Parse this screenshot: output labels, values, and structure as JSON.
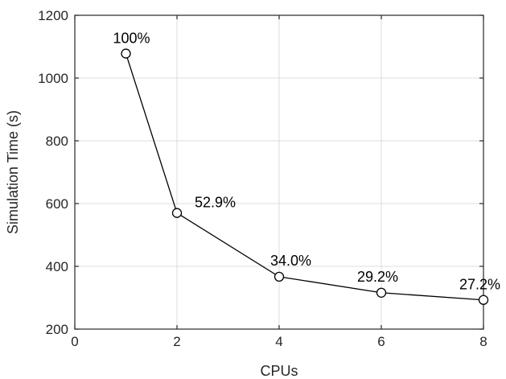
{
  "chart_data": {
    "type": "line",
    "xlabel": "CPUs",
    "ylabel": "Simulation Time (s)",
    "xlim": [
      0,
      8
    ],
    "ylim": [
      200,
      1200
    ],
    "xticks": [
      0,
      2,
      4,
      6,
      8
    ],
    "yticks": [
      200,
      400,
      600,
      800,
      1000,
      1200
    ],
    "grid": true,
    "x": [
      1,
      2,
      4,
      6,
      8
    ],
    "series": [
      {
        "values": [
          1078,
          570,
          367,
          316,
          293
        ],
        "point_labels": [
          "100%",
          "52.9%",
          "34.0%",
          "29.2%",
          "27.2%"
        ],
        "color": "#000000",
        "marker": "circle"
      }
    ]
  }
}
